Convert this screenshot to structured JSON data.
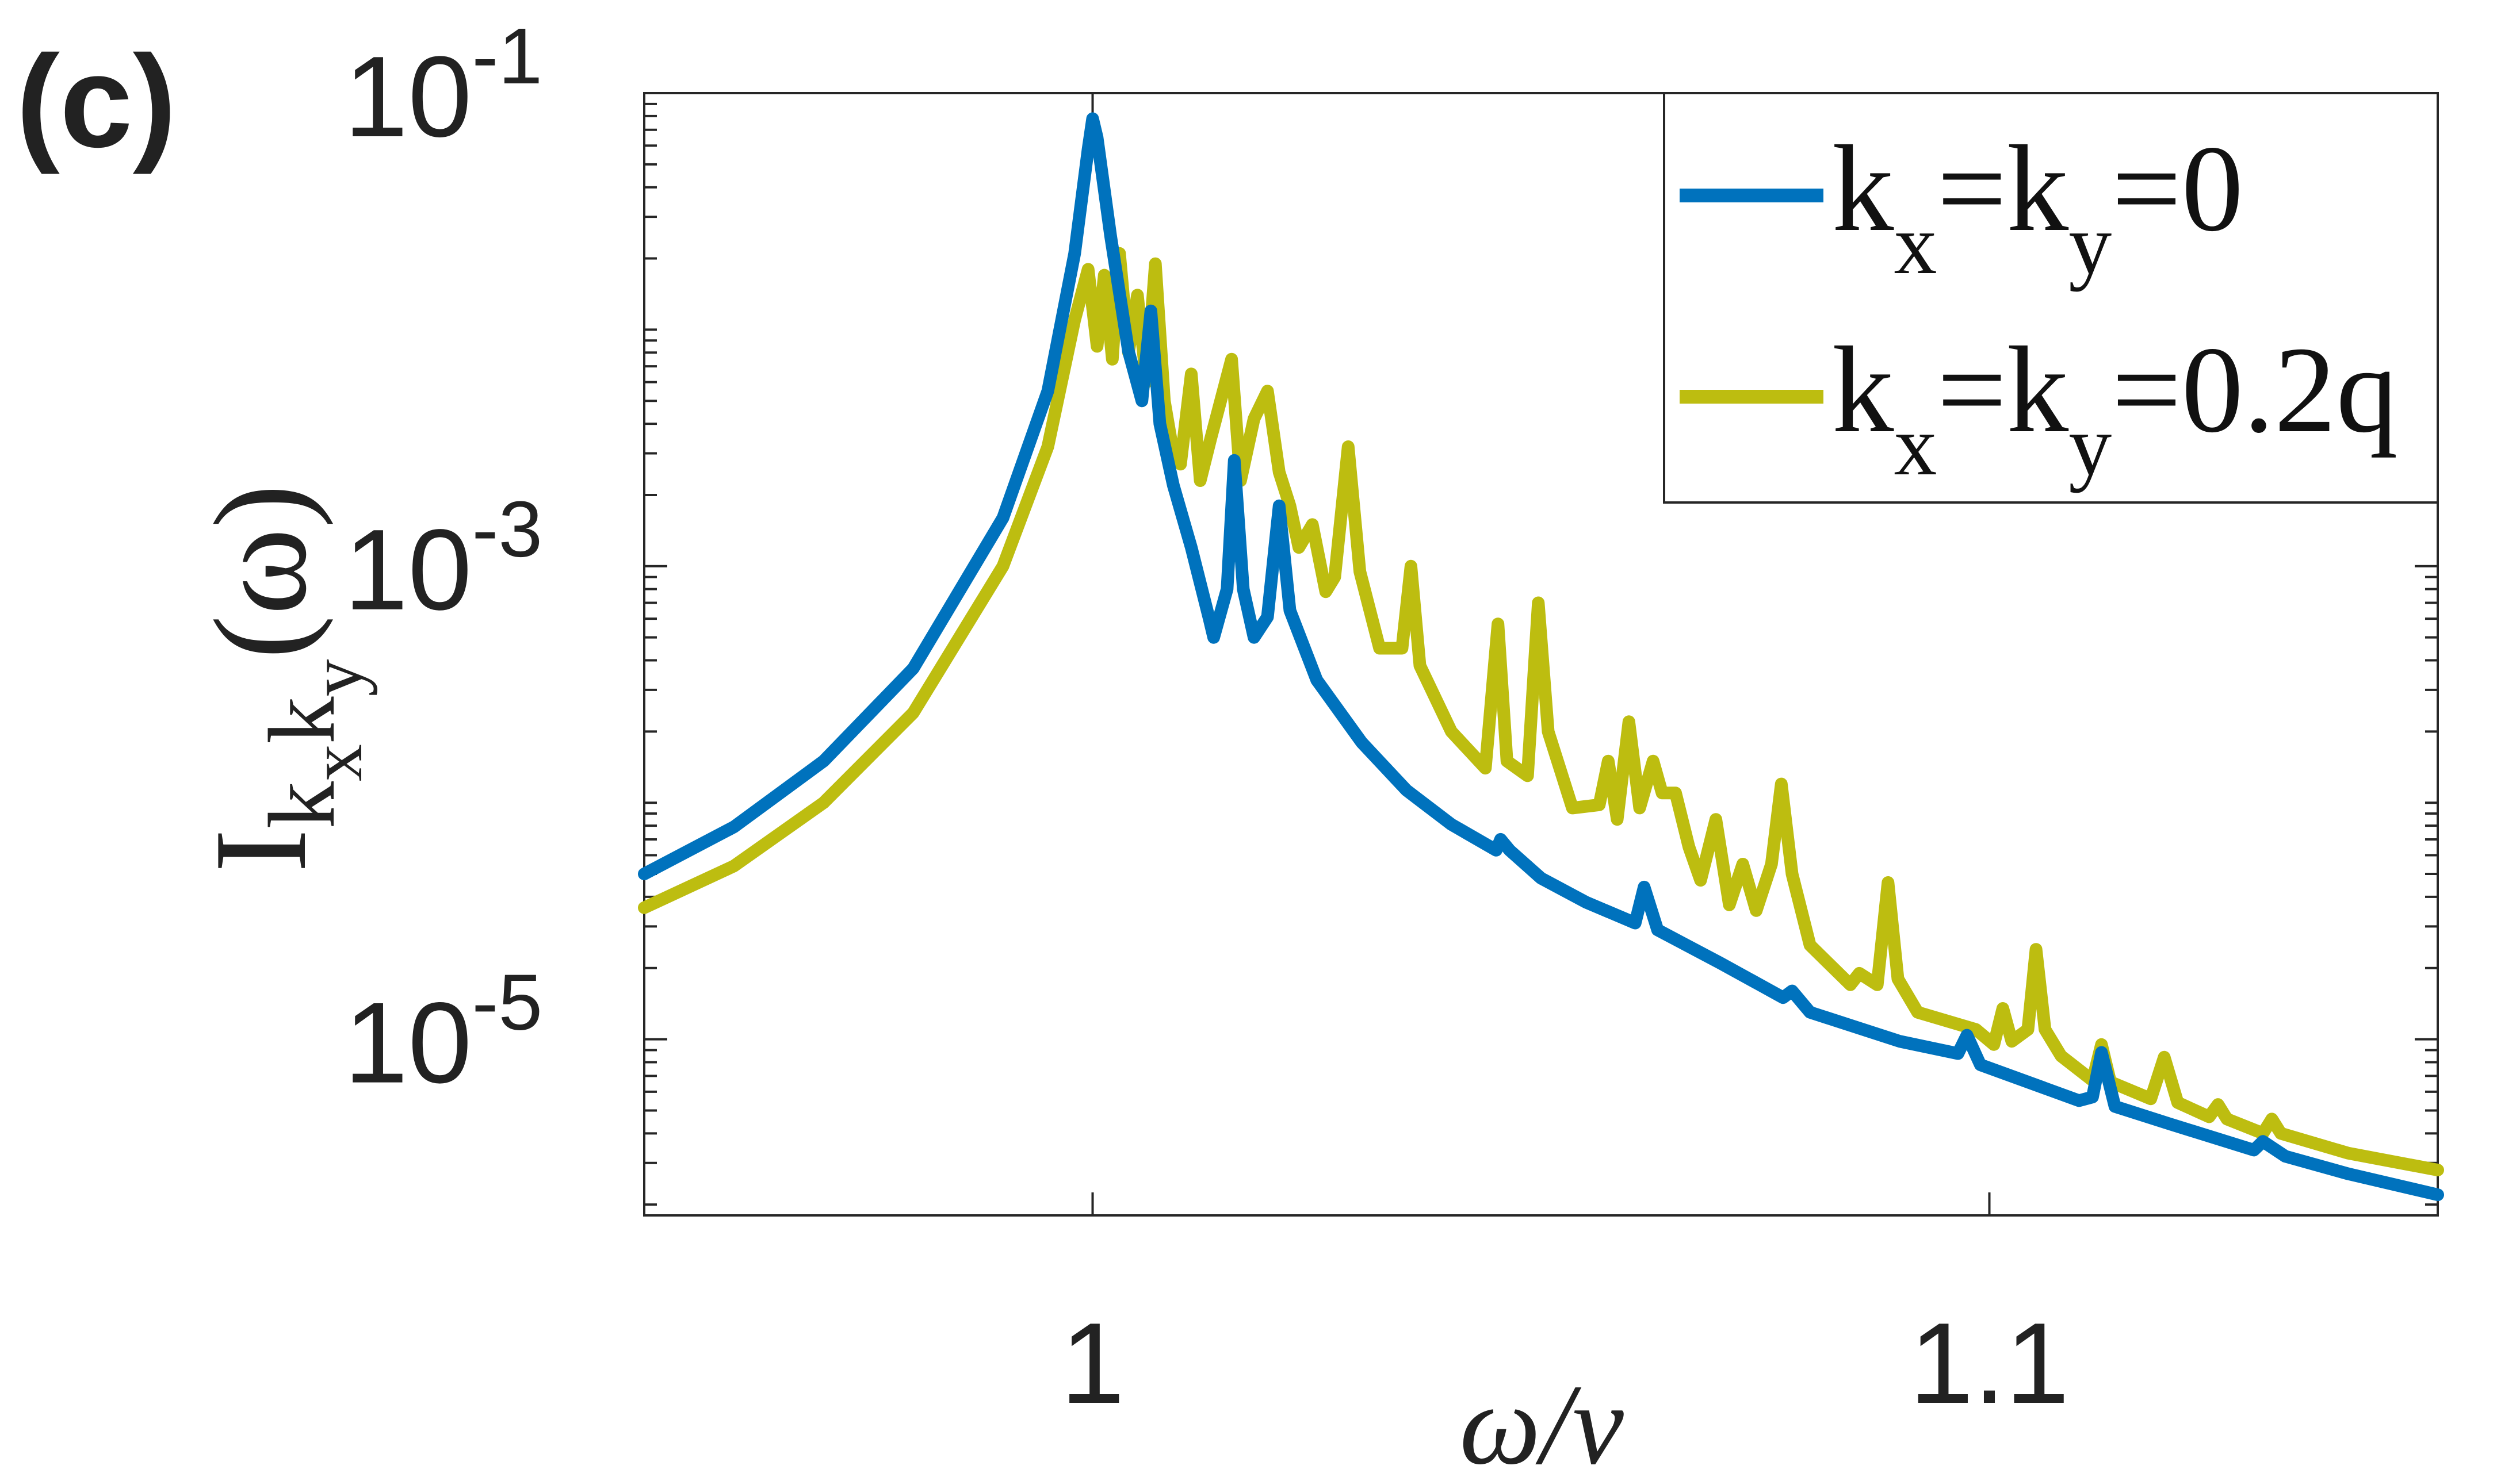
{
  "panel_label": "(c)",
  "chart_data": {
    "type": "line",
    "title": "",
    "xlabel": "ω/ν",
    "ylabel": {
      "base": "I",
      "sub_k1": "k",
      "sub_x": "x",
      "sub_k2": "k",
      "sub_y": "y",
      "arg": "(ω)"
    },
    "xscale": "linear",
    "yscale": "log",
    "xlim": [
      0.95,
      1.15
    ],
    "ylim": [
      1.8e-06,
      0.1
    ],
    "xticks": [
      1,
      1.1
    ],
    "xtick_labels": [
      "1",
      "1.1"
    ],
    "yticks": [
      0.1,
      0.001,
      1e-05
    ],
    "ytick_labels": [
      {
        "base": "10",
        "exp": "-1"
      },
      {
        "base": "10",
        "exp": "-3"
      },
      {
        "base": "10",
        "exp": "-5"
      }
    ],
    "grid": false,
    "legend_position": "top-right",
    "legend": [
      {
        "color": "#0072BD",
        "parts": [
          "k",
          "x",
          "=k",
          "y",
          "=0"
        ]
      },
      {
        "color": "#BDBD10",
        "parts": [
          "k",
          "x",
          "=k",
          "y",
          "=0.2q"
        ]
      }
    ],
    "series": [
      {
        "color": "#0072BD",
        "points": [
          [
            0.95,
            5e-05
          ],
          [
            0.96,
            7.9e-05
          ],
          [
            0.97,
            0.00015
          ],
          [
            0.98,
            0.00037
          ],
          [
            0.99,
            0.0016
          ],
          [
            0.995,
            0.0055
          ],
          [
            0.998,
            0.021
          ],
          [
            0.9995,
            0.058
          ],
          [
            1.0,
            0.078
          ],
          [
            1.0005,
            0.065
          ],
          [
            1.002,
            0.025
          ],
          [
            1.004,
            0.0081
          ],
          [
            1.0055,
            0.005
          ],
          [
            1.0065,
            0.012
          ],
          [
            1.0075,
            0.004
          ],
          [
            1.009,
            0.0022
          ],
          [
            1.011,
            0.0012
          ],
          [
            1.013,
            0.0006
          ],
          [
            1.0135,
            0.0005
          ],
          [
            1.015,
            0.0008
          ],
          [
            1.0158,
            0.0028
          ],
          [
            1.0168,
            0.0008
          ],
          [
            1.018,
            0.0005
          ],
          [
            1.0195,
            0.00061
          ],
          [
            1.0208,
            0.0018
          ],
          [
            1.022,
            0.00065
          ],
          [
            1.025,
            0.00033
          ],
          [
            1.03,
            0.00018
          ],
          [
            1.035,
            0.000113
          ],
          [
            1.04,
            8.1e-05
          ],
          [
            1.045,
            6.3e-05
          ],
          [
            1.0455,
            7e-05
          ],
          [
            1.0465,
            6.3e-05
          ],
          [
            1.05,
            4.8e-05
          ],
          [
            1.055,
            3.8e-05
          ],
          [
            1.0605,
            3.1e-05
          ],
          [
            1.0615,
            4.4e-05
          ],
          [
            1.063,
            2.9e-05
          ],
          [
            1.07,
            2.1e-05
          ],
          [
            1.077,
            1.5e-05
          ],
          [
            1.078,
            1.6e-05
          ],
          [
            1.08,
            1.3e-05
          ],
          [
            1.09,
            9.8e-06
          ],
          [
            1.0965,
            8.7e-06
          ],
          [
            1.0975,
            1.04e-05
          ],
          [
            1.099,
            7.8e-06
          ],
          [
            1.11,
            5.5e-06
          ],
          [
            1.1115,
            5.7e-06
          ],
          [
            1.1125,
            8.8e-06
          ],
          [
            1.114,
            5.2e-06
          ],
          [
            1.12,
            4.4e-06
          ],
          [
            1.1295,
            3.4e-06
          ],
          [
            1.1305,
            3.7e-06
          ],
          [
            1.133,
            3.2e-06
          ],
          [
            1.14,
            2.7e-06
          ],
          [
            1.15,
            2.2e-06
          ]
        ]
      },
      {
        "color": "#BDBD10",
        "points": [
          [
            0.95,
            3.6e-05
          ],
          [
            0.96,
            5.4e-05
          ],
          [
            0.97,
            0.0001
          ],
          [
            0.98,
            0.00024
          ],
          [
            0.99,
            0.001
          ],
          [
            0.995,
            0.0032
          ],
          [
            0.998,
            0.011
          ],
          [
            0.9995,
            0.018
          ],
          [
            1.0005,
            0.0085
          ],
          [
            1.0013,
            0.017
          ],
          [
            1.0022,
            0.0075
          ],
          [
            1.003,
            0.021
          ],
          [
            1.004,
            0.008
          ],
          [
            1.005,
            0.014
          ],
          [
            1.006,
            0.006
          ],
          [
            1.007,
            0.019
          ],
          [
            1.008,
            0.005
          ],
          [
            1.009,
            0.003
          ],
          [
            1.0098,
            0.0027
          ],
          [
            1.011,
            0.0065
          ],
          [
            1.012,
            0.0023
          ],
          [
            1.0132,
            0.0035
          ],
          [
            1.0155,
            0.0075
          ],
          [
            1.0165,
            0.0023
          ],
          [
            1.018,
            0.0042
          ],
          [
            1.0195,
            0.0055
          ],
          [
            1.0208,
            0.0025
          ],
          [
            1.022,
            0.0018
          ],
          [
            1.023,
            0.0012
          ],
          [
            1.0245,
            0.0015
          ],
          [
            1.026,
            0.00078
          ],
          [
            1.027,
            0.0009
          ],
          [
            1.0285,
            0.0032
          ],
          [
            1.0298,
            0.00095
          ],
          [
            1.032,
            0.00045
          ],
          [
            1.0345,
            0.00045
          ],
          [
            1.0355,
            0.001
          ],
          [
            1.0365,
            0.00038
          ],
          [
            1.04,
            0.0002
          ],
          [
            1.0438,
            0.00014
          ],
          [
            1.0452,
            0.00057
          ],
          [
            1.0462,
            0.00015
          ],
          [
            1.0485,
            0.00013
          ],
          [
            1.0497,
            0.0007
          ],
          [
            1.0508,
            0.0002
          ],
          [
            1.0535,
            9.5e-05
          ],
          [
            1.0565,
            9.8e-05
          ],
          [
            1.0575,
            0.00015
          ],
          [
            1.0585,
            8.5e-05
          ],
          [
            1.0598,
            0.00022
          ],
          [
            1.061,
            9.5e-05
          ],
          [
            1.0625,
            0.00015
          ],
          [
            1.0635,
            0.00011
          ],
          [
            1.065,
            0.00011
          ],
          [
            1.0665,
            6.5e-05
          ],
          [
            1.0678,
            4.7e-05
          ],
          [
            1.0695,
            8.5e-05
          ],
          [
            1.071,
            3.7e-05
          ],
          [
            1.0725,
            5.5e-05
          ],
          [
            1.074,
            3.5e-05
          ],
          [
            1.0757,
            5.5e-05
          ],
          [
            1.0768,
            0.00012
          ],
          [
            1.078,
            5e-05
          ],
          [
            1.08,
            2.5e-05
          ],
          [
            1.0845,
            1.7e-05
          ],
          [
            1.0855,
            1.9e-05
          ],
          [
            1.0875,
            1.7e-05
          ],
          [
            1.0887,
            4.6e-05
          ],
          [
            1.0898,
            1.8e-05
          ],
          [
            1.092,
            1.3e-05
          ],
          [
            1.0985,
            1.1e-05
          ],
          [
            1.1005,
            9.5e-06
          ],
          [
            1.1015,
            1.35e-05
          ],
          [
            1.1025,
            9.8e-06
          ],
          [
            1.1043,
            1.1e-05
          ],
          [
            1.1052,
            2.4e-05
          ],
          [
            1.1062,
            1.1e-05
          ],
          [
            1.108,
            8.5e-06
          ],
          [
            1.1115,
            6.7e-06
          ],
          [
            1.1125,
            9.5e-06
          ],
          [
            1.1135,
            6.6e-06
          ],
          [
            1.118,
            5.6e-06
          ],
          [
            1.1195,
            8.4e-06
          ],
          [
            1.121,
            5.4e-06
          ],
          [
            1.1245,
            4.7e-06
          ],
          [
            1.1255,
            5.3e-06
          ],
          [
            1.1265,
            4.6e-06
          ],
          [
            1.1305,
            4e-06
          ],
          [
            1.1315,
            4.6e-06
          ],
          [
            1.1325,
            4e-06
          ],
          [
            1.14,
            3.3e-06
          ],
          [
            1.15,
            2.8e-06
          ]
        ]
      }
    ]
  }
}
